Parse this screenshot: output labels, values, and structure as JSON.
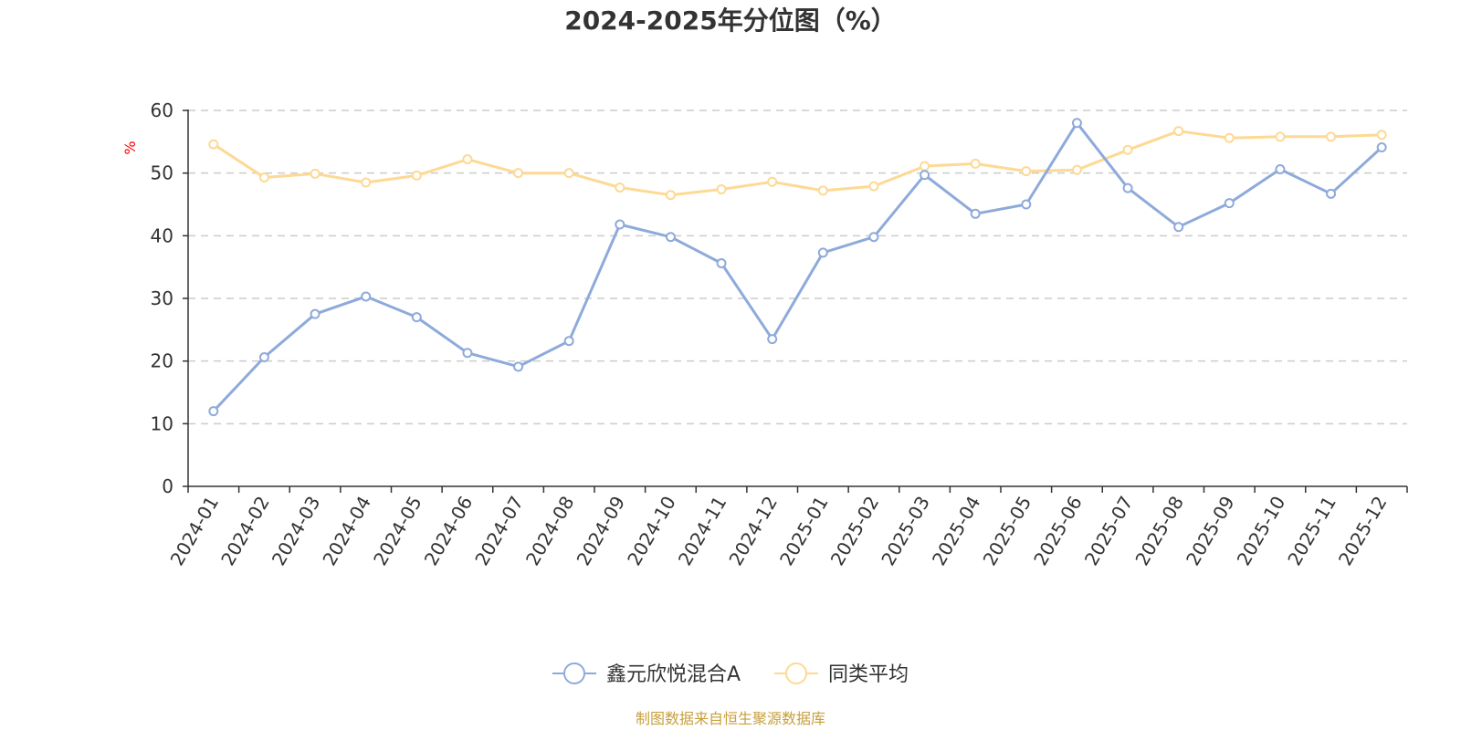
{
  "chart_data": {
    "type": "line",
    "title": "2024-2025年分位图（%）",
    "xlabel": "",
    "ylabel": "%",
    "ylim": [
      0,
      60
    ],
    "yticks": [
      0,
      10,
      20,
      30,
      40,
      50,
      60
    ],
    "grid": true,
    "legend_position": "bottom-center",
    "categories": [
      "2024-01",
      "2024-02",
      "2024-03",
      "2024-04",
      "2024-05",
      "2024-06",
      "2024-07",
      "2024-08",
      "2024-09",
      "2024-10",
      "2024-11",
      "2024-12",
      "2025-01",
      "2025-02",
      "2025-03",
      "2025-04",
      "2025-05",
      "2025-06",
      "2025-07",
      "2025-08",
      "2025-09",
      "2025-10",
      "2025-11",
      "2025-12"
    ],
    "series": [
      {
        "name": "鑫元欣悦混合A",
        "color": "#8eaadb",
        "values": [
          12.0,
          20.6,
          27.5,
          30.3,
          27.0,
          21.3,
          19.1,
          23.2,
          41.8,
          39.8,
          35.6,
          23.5,
          37.3,
          39.8,
          49.7,
          43.5,
          45.0,
          58.0,
          47.6,
          41.4,
          45.2,
          50.6,
          46.7,
          54.1
        ]
      },
      {
        "name": "同类平均",
        "color": "#fdd994",
        "values": [
          54.6,
          49.3,
          49.9,
          48.5,
          49.6,
          52.2,
          50.0,
          50.0,
          47.7,
          46.5,
          47.4,
          48.6,
          47.2,
          47.9,
          51.1,
          51.5,
          50.3,
          50.5,
          53.7,
          56.7,
          55.6,
          55.8,
          55.8,
          56.1
        ]
      }
    ],
    "source_note": "制图数据来自恒生聚源数据库",
    "source_color": "#c8a03c",
    "ylabel_color": "#ff0000"
  }
}
